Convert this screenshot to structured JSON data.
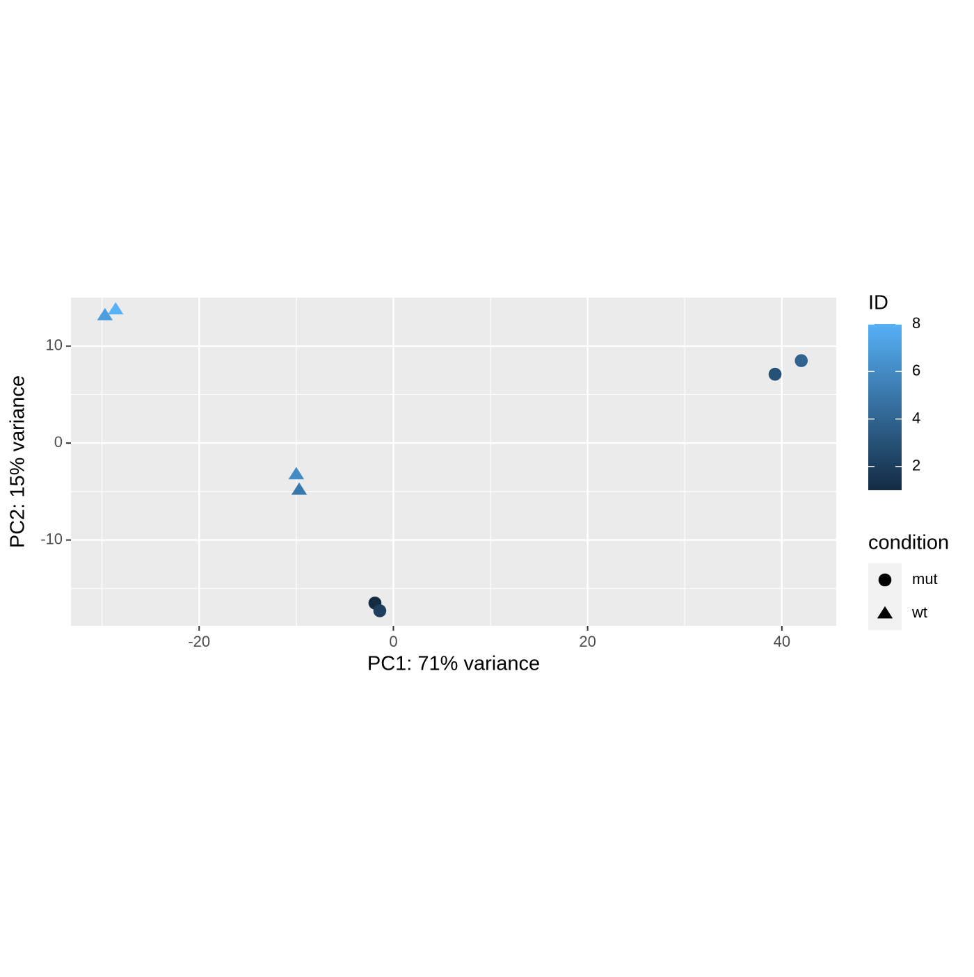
{
  "chart_data": {
    "type": "scatter",
    "xlabel": "PC1: 71% variance",
    "ylabel": "PC2: 15% variance",
    "xlim": [
      -33.2,
      45.6
    ],
    "ylim": [
      -18.85,
      15
    ],
    "xticks": [
      -20,
      0,
      20,
      40
    ],
    "yticks": [
      -10,
      0,
      10
    ],
    "xminor": [
      -30,
      -10,
      10,
      30
    ],
    "yminor": [
      -15,
      -5,
      5
    ],
    "grid": true,
    "shape_legend_title": "condition",
    "series": [
      {
        "name": "mut",
        "shape": "circle",
        "x": [
          -1.9,
          -1.4,
          39.3,
          42.0
        ],
        "y": [
          -16.5,
          -17.3,
          7.1,
          8.5
        ],
        "id": [
          1,
          2,
          3,
          4
        ]
      },
      {
        "name": "wt",
        "shape": "triangle",
        "x": [
          -9.7,
          -10.0,
          -29.7,
          -28.6
        ],
        "y": [
          -4.8,
          -3.2,
          13.2,
          13.8
        ],
        "id": [
          5,
          6,
          7,
          8
        ]
      }
    ],
    "colorbar": {
      "title": "ID",
      "lim": [
        1,
        8
      ],
      "ticks": [
        2,
        4,
        6,
        8
      ],
      "low": "#132B43",
      "high": "#56B1F7"
    }
  }
}
